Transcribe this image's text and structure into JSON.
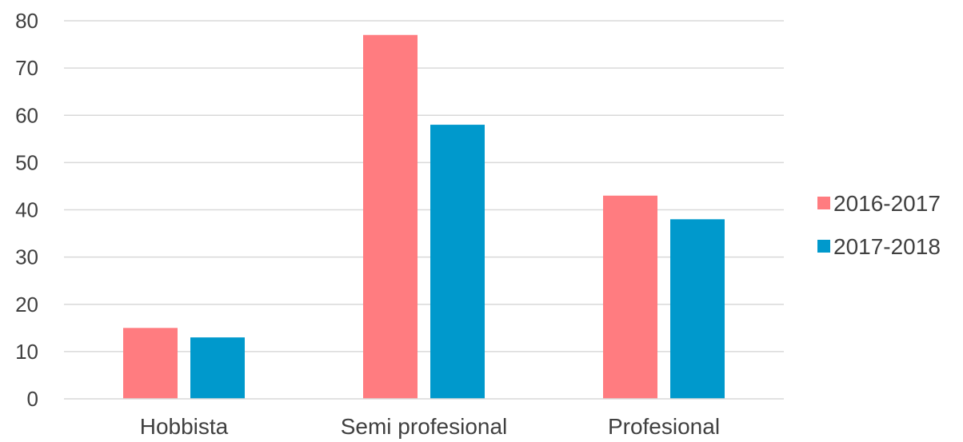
{
  "chart_data": {
    "type": "bar",
    "categories": [
      "Hobbista",
      "Semi profesional",
      "Profesional"
    ],
    "series": [
      {
        "name": "2016-2017",
        "color": "#FF7C80",
        "values": [
          15,
          77,
          43
        ]
      },
      {
        "name": "2017-2018",
        "color": "#0099CC",
        "values": [
          13,
          58,
          38
        ]
      }
    ],
    "ylim": [
      0,
      80
    ],
    "yticks": [
      0,
      10,
      20,
      30,
      40,
      50,
      60,
      70,
      80
    ],
    "grid": true,
    "legend": "right",
    "title": "",
    "xlabel": "",
    "ylabel": ""
  }
}
